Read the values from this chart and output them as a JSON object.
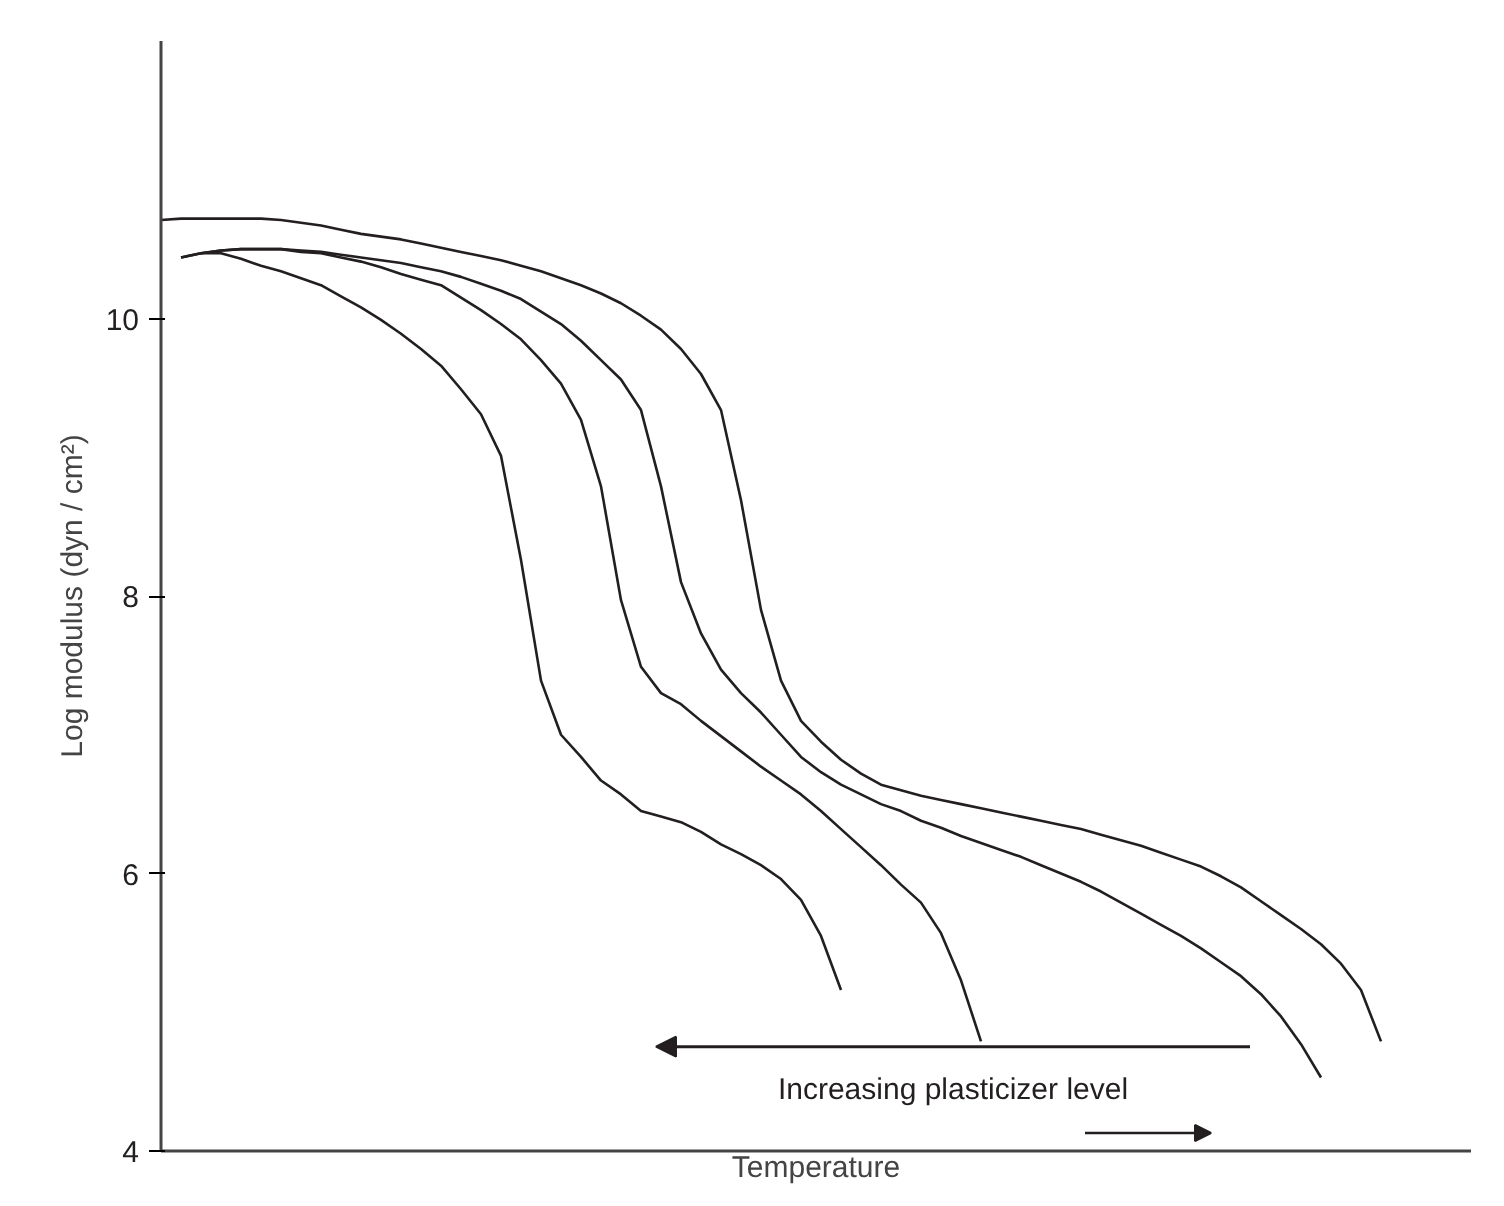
{
  "chart_data": {
    "type": "line",
    "xlabel": "Temperature",
    "ylabel": "Log modulus (dyn / cm²)",
    "categories": [
      null,
      null,
      null,
      null,
      null,
      null,
      null,
      null,
      null,
      null,
      null,
      null,
      null,
      null,
      null,
      null,
      null,
      null,
      null,
      null,
      null,
      null,
      null,
      null,
      null,
      null,
      null,
      null,
      null,
      null,
      null,
      null,
      null,
      null,
      null,
      null,
      null,
      null,
      null,
      null,
      null,
      null,
      null,
      null,
      null,
      null,
      null,
      null,
      null,
      null,
      null,
      null,
      null,
      null,
      null,
      null,
      null,
      null,
      null,
      null,
      null,
      null,
      null,
      null,
      null,
      null
    ],
    "series": [
      {
        "color": "#231f20",
        "values": [
          10.71,
          10.72,
          10.72,
          10.72,
          10.72,
          10.72,
          10.71,
          10.69,
          10.67,
          10.64,
          10.61,
          10.59,
          10.57,
          10.54,
          10.51,
          10.48,
          10.45,
          10.42,
          10.38,
          10.34,
          10.29,
          10.24,
          10.18,
          10.11,
          10.02,
          9.92,
          9.78,
          9.6,
          9.34,
          8.69,
          7.9,
          7.39,
          7.1,
          6.95,
          6.82,
          6.72,
          6.64,
          6.6,
          6.56,
          6.53,
          6.5,
          6.47,
          6.44,
          6.41,
          6.38,
          6.35,
          6.32,
          6.28,
          6.24,
          6.2,
          6.15,
          6.1,
          6.05,
          5.98,
          5.9,
          5.8,
          5.7,
          5.6,
          5.49,
          5.35,
          5.16,
          4.79,
          null,
          null,
          null,
          null
        ]
      },
      {
        "color": "#231f20",
        "values": [
          null,
          10.44,
          10.47,
          10.49,
          10.5,
          10.5,
          10.5,
          10.49,
          10.48,
          10.46,
          10.44,
          10.42,
          10.4,
          10.37,
          10.34,
          10.3,
          10.25,
          10.2,
          10.14,
          10.05,
          9.96,
          9.84,
          9.7,
          9.56,
          9.34,
          8.79,
          8.1,
          7.73,
          7.47,
          7.3,
          7.16,
          7.0,
          6.84,
          6.73,
          6.64,
          6.57,
          6.5,
          6.45,
          6.38,
          6.33,
          6.27,
          6.22,
          6.17,
          6.12,
          6.06,
          6.0,
          5.94,
          5.87,
          5.79,
          5.71,
          5.63,
          5.55,
          5.46,
          5.36,
          5.26,
          5.13,
          4.97,
          4.77,
          4.53,
          null,
          null,
          null,
          null,
          null,
          null,
          null
        ]
      },
      {
        "color": "#231f20",
        "values": [
          null,
          10.44,
          10.47,
          10.49,
          10.5,
          10.5,
          10.5,
          10.48,
          10.47,
          10.44,
          10.41,
          10.37,
          10.32,
          10.28,
          10.24,
          10.15,
          10.06,
          9.96,
          9.85,
          9.7,
          9.53,
          9.27,
          8.79,
          7.97,
          7.49,
          7.3,
          7.22,
          7.1,
          6.99,
          6.88,
          6.77,
          6.67,
          6.57,
          6.45,
          6.32,
          6.19,
          6.06,
          5.92,
          5.79,
          5.57,
          5.23,
          4.79,
          null,
          null,
          null,
          null,
          null,
          null,
          null,
          null,
          null,
          null,
          null,
          null,
          null,
          null,
          null,
          null,
          null,
          null,
          null,
          null,
          null,
          null,
          null,
          null
        ]
      },
      {
        "color": "#231f20",
        "values": [
          null,
          null,
          10.47,
          10.47,
          10.43,
          10.38,
          10.34,
          10.29,
          10.24,
          10.16,
          10.08,
          9.99,
          9.89,
          9.78,
          9.66,
          9.49,
          9.31,
          9.01,
          8.26,
          7.39,
          7.0,
          6.84,
          6.67,
          6.57,
          6.45,
          6.41,
          6.37,
          6.3,
          6.21,
          6.14,
          6.06,
          5.96,
          5.81,
          5.55,
          5.16,
          null,
          null,
          null,
          null,
          null,
          null,
          null,
          null,
          null,
          null,
          null,
          null,
          null,
          null,
          null,
          null,
          null,
          null,
          null,
          null,
          null,
          null,
          null,
          null,
          null,
          null,
          null,
          null,
          null,
          null,
          null
        ]
      }
    ],
    "ylim": [
      4,
      12
    ],
    "yticks": [
      4,
      6,
      8,
      10
    ],
    "tick_labels": "y",
    "marker": "none",
    "line_style": "solid",
    "annotations": [
      "Increasing plasticizer level"
    ]
  }
}
